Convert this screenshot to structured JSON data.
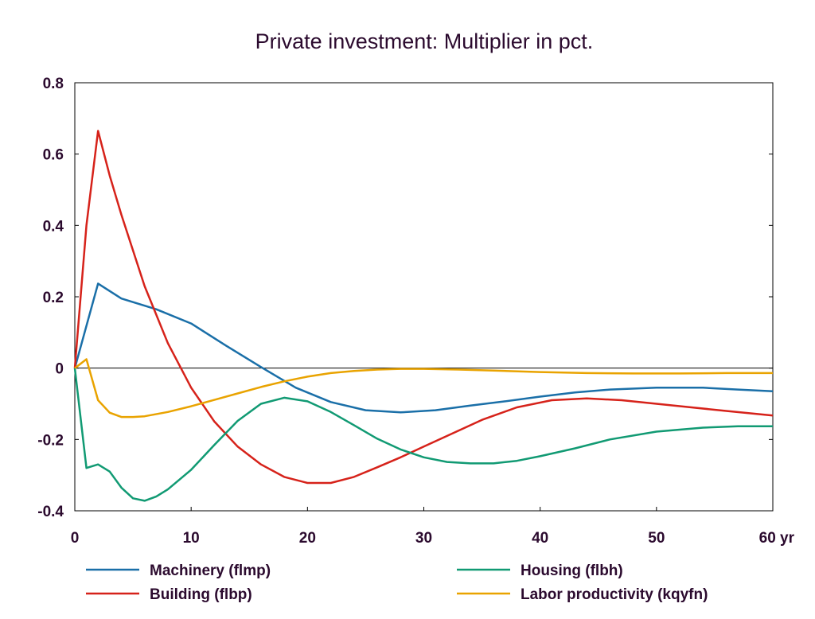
{
  "chart_data": {
    "type": "line",
    "title": "Private investment: Multiplier in pct.",
    "xlabel": "",
    "ylabel": "",
    "xlim": [
      0,
      60
    ],
    "ylim": [
      -0.4,
      0.8
    ],
    "x_ticks": [
      0,
      10,
      20,
      30,
      40,
      50,
      60
    ],
    "x_tick_labels": [
      "0",
      "10",
      "20",
      "30",
      "40",
      "50",
      "60 yr"
    ],
    "y_ticks": [
      0.8,
      0.6,
      0.4,
      0.2,
      0,
      -0.2,
      -0.4
    ],
    "y_tick_labels": [
      "0.8",
      "0.6",
      "0.4",
      "0.2",
      "0",
      "-0.2",
      "-0.4"
    ],
    "zero_line": true,
    "grid": false,
    "legend_position": "bottom",
    "series": [
      {
        "name": "Machinery (flmp)",
        "color": "#1a6fa8",
        "x": [
          0,
          2,
          4,
          7,
          10,
          13,
          16,
          19,
          22,
          25,
          28,
          31,
          34,
          37,
          40,
          43,
          46,
          50,
          54,
          57,
          60
        ],
        "y": [
          0,
          0.237,
          0.195,
          0.165,
          0.125,
          0.063,
          0.003,
          -0.055,
          -0.095,
          -0.118,
          -0.124,
          -0.118,
          -0.105,
          -0.093,
          -0.08,
          -0.068,
          -0.06,
          -0.055,
          -0.055,
          -0.06,
          -0.065
        ]
      },
      {
        "name": "Building (flbp)",
        "color": "#d6221a",
        "x": [
          0,
          1,
          2,
          3,
          4,
          6,
          8,
          10,
          12,
          14,
          16,
          18,
          20,
          22,
          24,
          26,
          28,
          30,
          32,
          35,
          38,
          41,
          44,
          47,
          50,
          53,
          56,
          60
        ],
        "y": [
          0,
          0.4,
          0.665,
          0.54,
          0.43,
          0.23,
          0.07,
          -0.055,
          -0.15,
          -0.22,
          -0.27,
          -0.305,
          -0.322,
          -0.322,
          -0.305,
          -0.278,
          -0.25,
          -0.22,
          -0.19,
          -0.145,
          -0.11,
          -0.09,
          -0.085,
          -0.09,
          -0.1,
          -0.11,
          -0.12,
          -0.133
        ]
      },
      {
        "name": "Housing (flbh)",
        "color": "#119a73",
        "x": [
          0,
          1,
          2,
          3,
          4,
          5,
          6,
          7,
          8,
          10,
          12,
          14,
          16,
          18,
          20,
          22,
          24,
          26,
          28,
          30,
          32,
          34,
          36,
          38,
          40,
          43,
          46,
          50,
          54,
          57,
          60
        ],
        "y": [
          0,
          -0.28,
          -0.27,
          -0.29,
          -0.335,
          -0.365,
          -0.372,
          -0.36,
          -0.34,
          -0.285,
          -0.215,
          -0.148,
          -0.1,
          -0.083,
          -0.093,
          -0.123,
          -0.16,
          -0.198,
          -0.228,
          -0.25,
          -0.263,
          -0.267,
          -0.267,
          -0.26,
          -0.247,
          -0.225,
          -0.2,
          -0.178,
          -0.167,
          -0.163,
          -0.163
        ]
      },
      {
        "name": "Labor productivity (kqyfn)",
        "color": "#e9a300",
        "x": [
          0,
          1,
          2,
          3,
          4,
          5,
          6,
          8,
          10,
          12,
          14,
          16,
          18,
          20,
          22,
          24,
          26,
          28,
          30,
          33,
          36,
          40,
          44,
          48,
          52,
          56,
          60
        ],
        "y": [
          0,
          0.025,
          -0.09,
          -0.125,
          -0.137,
          -0.137,
          -0.135,
          -0.123,
          -0.107,
          -0.089,
          -0.071,
          -0.053,
          -0.037,
          -0.024,
          -0.014,
          -0.008,
          -0.004,
          -0.002,
          -0.002,
          -0.004,
          -0.007,
          -0.011,
          -0.014,
          -0.015,
          -0.015,
          -0.014,
          -0.014
        ]
      }
    ]
  }
}
